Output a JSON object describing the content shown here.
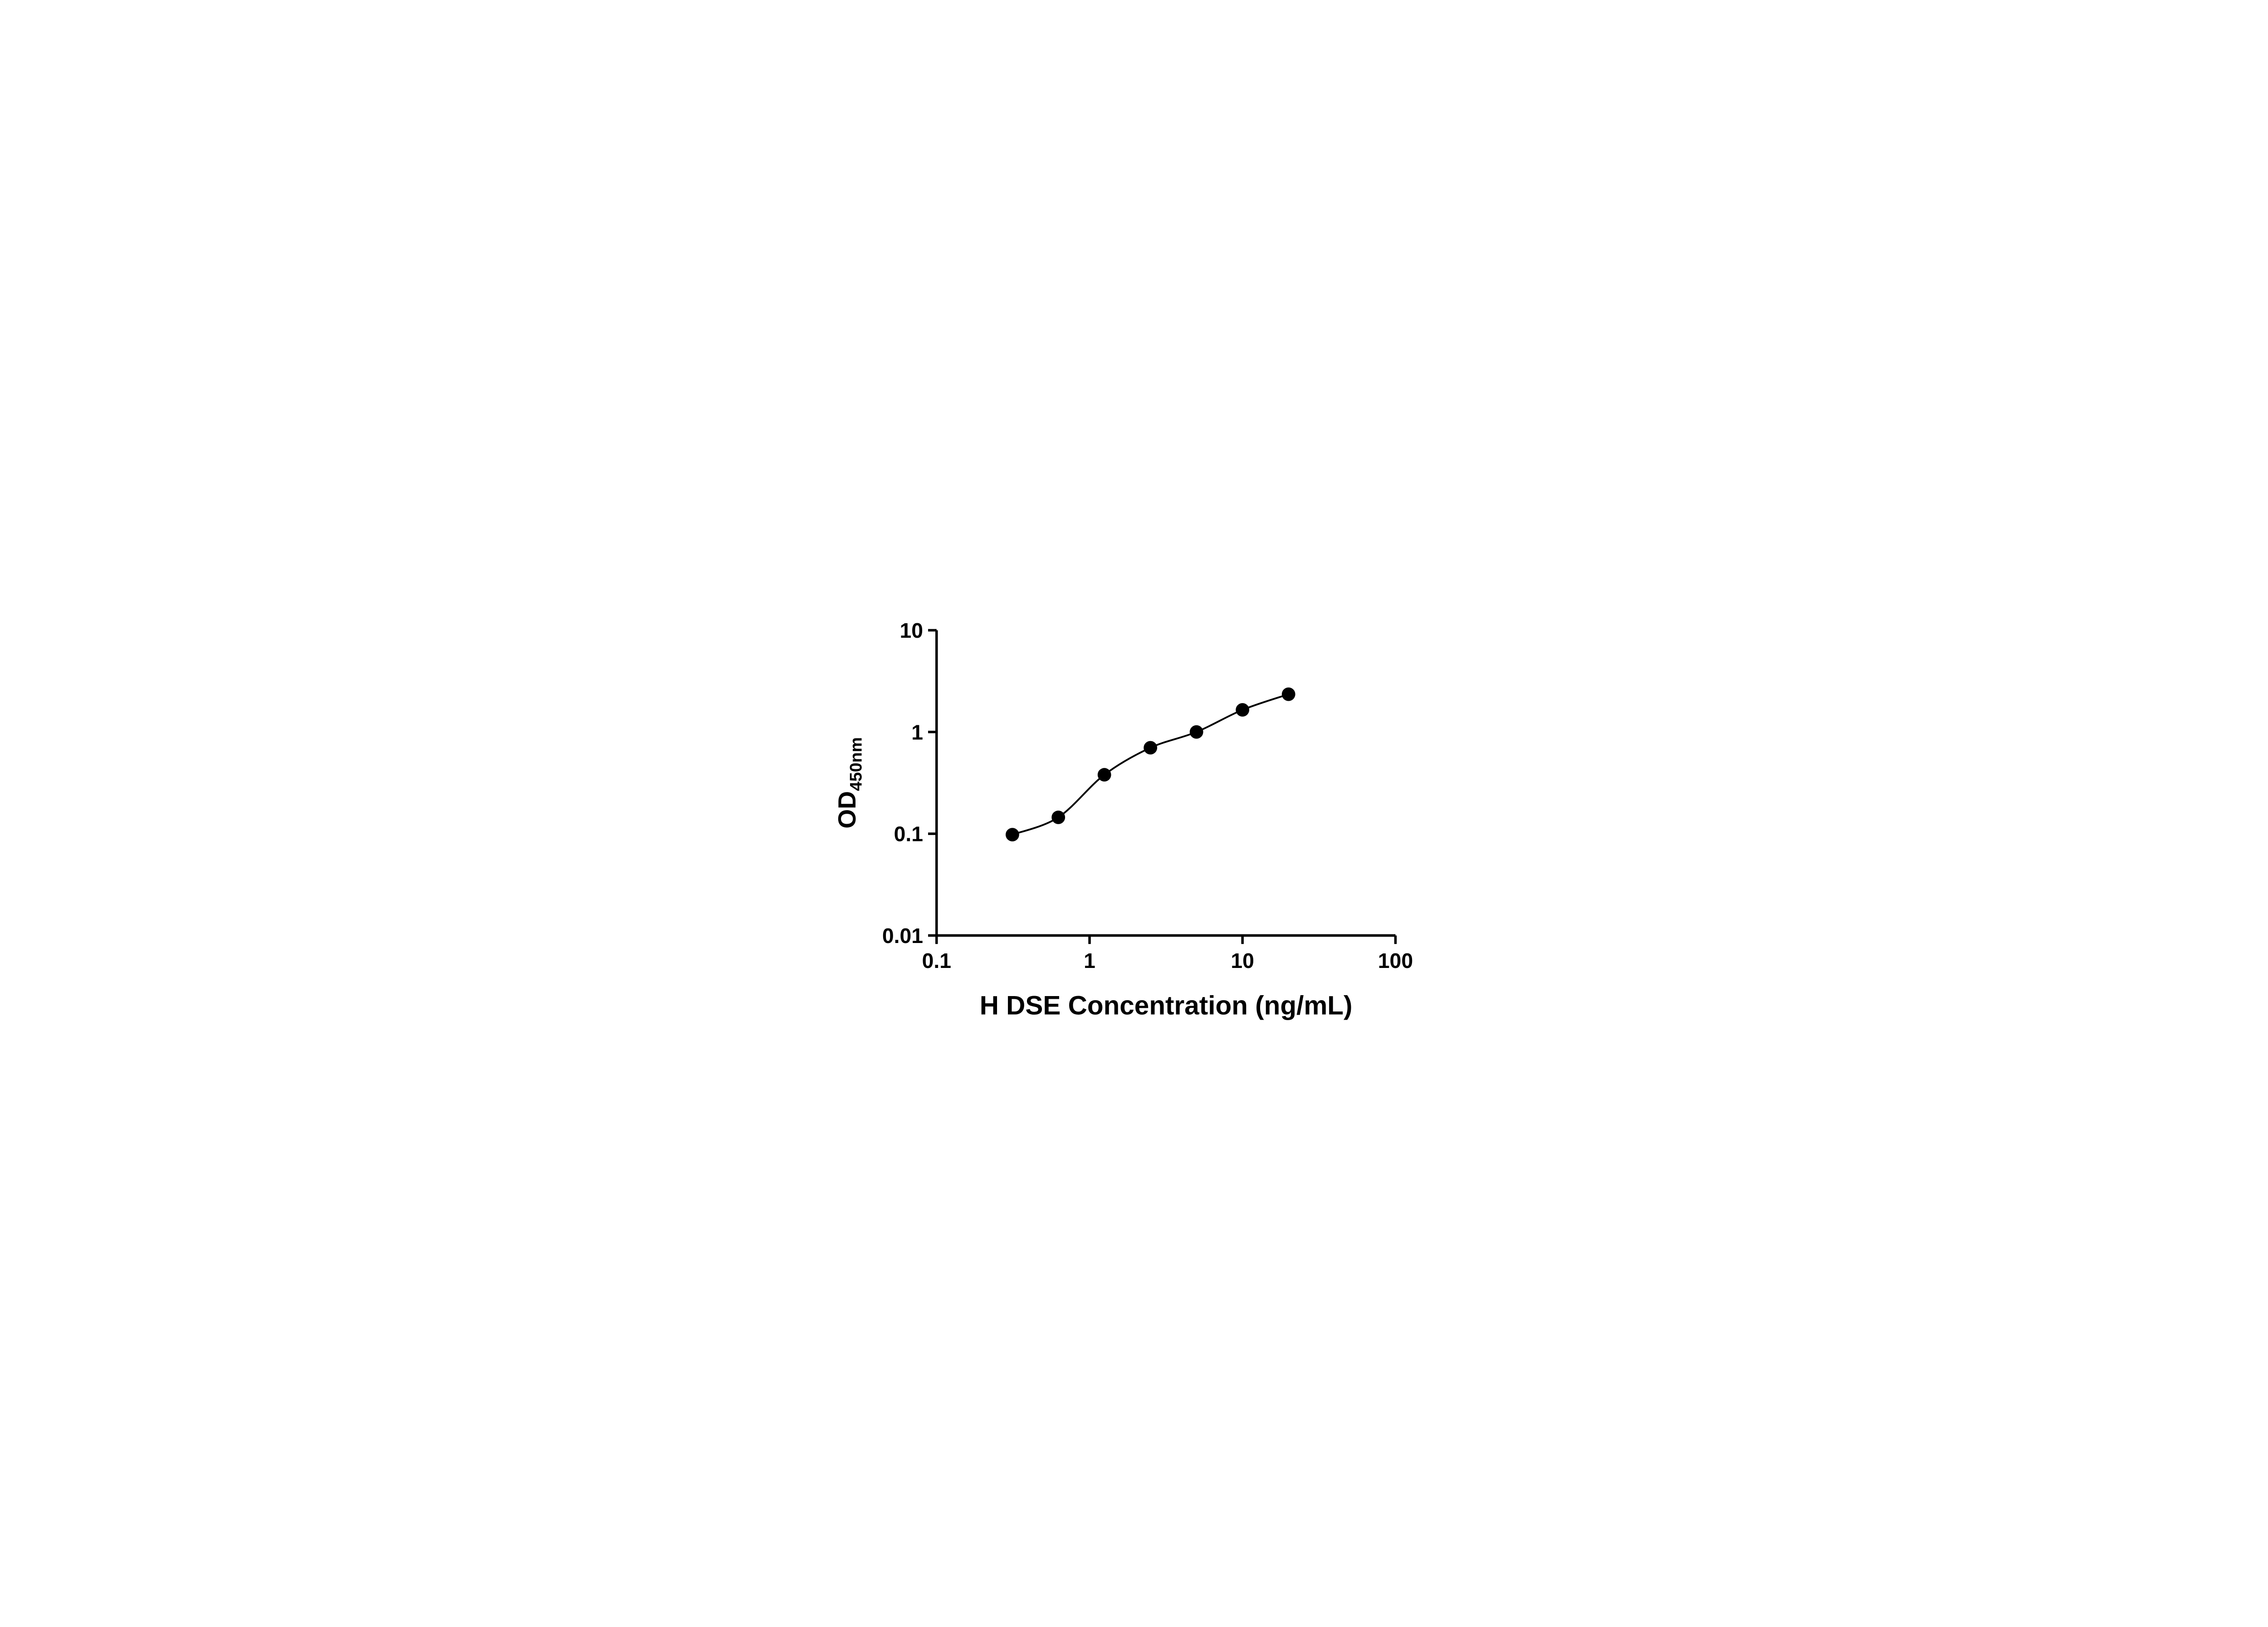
{
  "page": {
    "background_color": "#ffffff",
    "foreground_color": "#000000"
  },
  "chart_data": {
    "type": "scatter",
    "curve_fit": true,
    "title": "",
    "x": [
      0.313,
      0.625,
      1.25,
      2.5,
      5,
      10,
      20
    ],
    "y": [
      0.098,
      0.145,
      0.38,
      0.7,
      1.0,
      1.65,
      2.35
    ],
    "x_axis": {
      "label": "H DSE Concentration (ng/mL)",
      "scale": "log",
      "min": 0.1,
      "max": 100,
      "ticks": [
        0.1,
        1,
        10,
        100
      ],
      "tick_labels": [
        "0.1",
        "1",
        "10",
        "100"
      ]
    },
    "y_axis": {
      "label_main": "OD",
      "label_sub": "450nm",
      "scale": "log",
      "min": 0.01,
      "max": 10,
      "ticks": [
        0.01,
        0.1,
        1,
        10
      ],
      "tick_labels": [
        "0.01",
        "0.1",
        "1",
        "10"
      ]
    },
    "legend": null,
    "grid": false,
    "marker": {
      "shape": "circle",
      "color": "#000000",
      "radius": 13.5
    },
    "line": {
      "color": "#000000",
      "width": 3.5
    },
    "axis": {
      "color": "#000000",
      "stroke_width": 5,
      "tick_length": 17,
      "tick_direction": "out"
    }
  }
}
